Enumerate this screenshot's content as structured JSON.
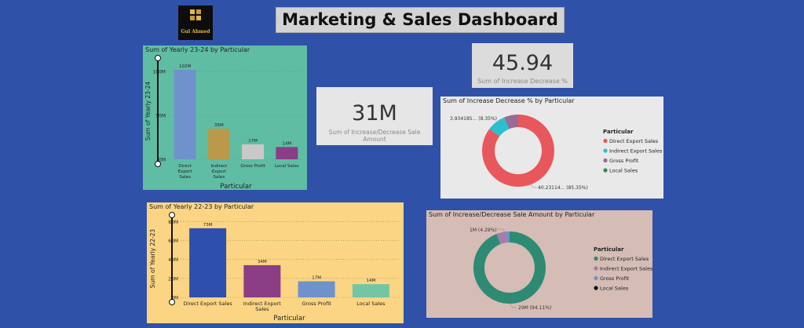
{
  "header": {
    "logo_text": "Gul Ahmed",
    "title": "Marketing & Sales Dashboard"
  },
  "kpis": {
    "increase_decrease_pct": {
      "value": "45.94",
      "label": "Sum of Increase Decrease %"
    },
    "increase_decrease_amount": {
      "value": "31M",
      "label": "Sum of Increase/Decrease Sale Amount"
    }
  },
  "colors": {
    "background": "#2f52a8",
    "chart1_bg": "#5fbda4",
    "chart2_bg": "#fbd583"
  },
  "chart_data": [
    {
      "type": "bar",
      "title": "Sum of Yearly 23-24 by Particular",
      "xlabel": "Particular",
      "ylabel": "Sum of Yearly 23-24",
      "categories": [
        "Direct Export Sales",
        "Indirect Export Sales",
        "Gross Profit",
        "Local Sales"
      ],
      "values": [
        102,
        35,
        17,
        14
      ],
      "data_labels": [
        "102M",
        "35M",
        "17M",
        "14M"
      ],
      "colors": [
        "#6f92cc",
        "#b99a4a",
        "#c9c9c9",
        "#8b3d86"
      ],
      "yticks": [
        "0M",
        "50M",
        "100M"
      ],
      "ylim": [
        0,
        110
      ],
      "grid": true
    },
    {
      "type": "bar",
      "title": "Sum of Yearly 22-23 by Particular",
      "xlabel": "Particular",
      "ylabel": "Sum of Yearly 22-23",
      "categories": [
        "Direct Export Sales",
        "Indirect Export Sales",
        "Gross Profit",
        "Local Sales"
      ],
      "values": [
        73,
        34,
        17,
        14
      ],
      "data_labels": [
        "73M",
        "34M",
        "17M",
        "14M"
      ],
      "colors": [
        "#2f4fae",
        "#8b3d86",
        "#6f92cc",
        "#73c6a4"
      ],
      "yticks": [
        "0M",
        "20M",
        "40M",
        "60M",
        "80M"
      ],
      "ylim": [
        0,
        82
      ],
      "grid": true
    },
    {
      "type": "pie",
      "title": "Sum of Increase Decrease % by Particular",
      "legend_title": "Particular",
      "legend_position": "right",
      "categories": [
        "Direct Export Sales",
        "Indirect Export Sales",
        "Gross Profit",
        "Local Sales"
      ],
      "values": [
        85.35,
        8.35,
        6.3,
        0
      ],
      "colors": [
        "#e8575b",
        "#2bbfcf",
        "#9a6a96",
        "#2e8a63"
      ],
      "annotations": [
        "40.23114... (85.35%)",
        "3.934185... (8.35%)"
      ]
    },
    {
      "type": "pie",
      "title": "Sum of Increase/Decrease Sale Amount by Particular",
      "legend_title": "Particular",
      "legend_position": "right",
      "categories": [
        "Direct Export Sales",
        "Indirect Export Sales",
        "Gross Profit",
        "Local Sales"
      ],
      "values": [
        94.11,
        4.29,
        1.6,
        0
      ],
      "colors": [
        "#2e8a73",
        "#a57ba8",
        "#6f92cc",
        "#111111"
      ],
      "annotations": [
        "29M (94.11%)",
        "1M (4.29%)"
      ]
    }
  ]
}
